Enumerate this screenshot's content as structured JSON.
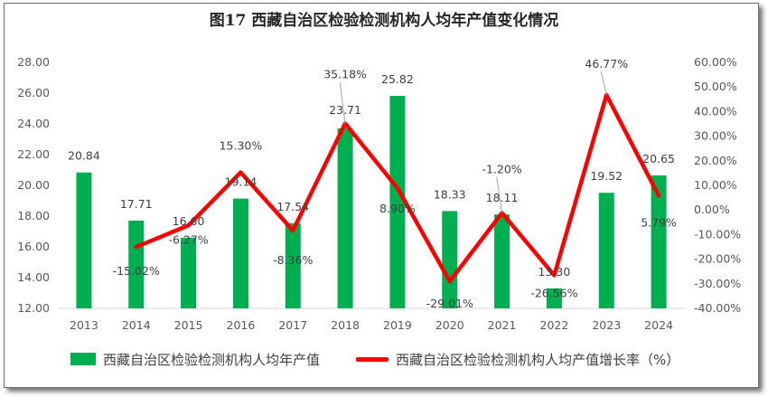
{
  "chart_data": {
    "type": "bar+line",
    "title": "图17   西藏自治区检验检测机构人均年产值变化情况",
    "categories": [
      "2013",
      "2014",
      "2015",
      "2016",
      "2017",
      "2018",
      "2019",
      "2020",
      "2021",
      "2022",
      "2023",
      "2024"
    ],
    "series": [
      {
        "name": "西藏自治区检验检测机构人均年产值",
        "type": "bar",
        "axis": "left",
        "values": [
          20.84,
          17.71,
          16.6,
          19.14,
          17.54,
          23.71,
          25.82,
          18.33,
          18.11,
          13.3,
          19.52,
          20.65
        ],
        "labels": [
          "20.84",
          "17.71",
          "16.60",
          "19.14",
          "17.54",
          "23.71",
          "25.82",
          "18.33",
          "18.11",
          "13.30",
          "19.52",
          "20.65"
        ],
        "color": "#00b050"
      },
      {
        "name": "西藏自治区检验检测机构人均产值增长率（%）",
        "type": "line",
        "axis": "right",
        "values": [
          null,
          -15.02,
          -6.27,
          15.3,
          -8.36,
          35.18,
          8.9,
          -29.01,
          -1.2,
          -26.56,
          46.77,
          5.79
        ],
        "labels": [
          "",
          "-15.02%",
          "-6.27%",
          "15.30%",
          "-8.36%",
          "35.18%",
          "8.90%",
          "-29.01%",
          "-1.20%",
          "-26.56%",
          "46.77%",
          "5.79%"
        ],
        "color": "#ff0000"
      }
    ],
    "y_left": {
      "min": 12,
      "max": 28,
      "ticks": [
        "12.00",
        "14.00",
        "16.00",
        "18.00",
        "20.00",
        "22.00",
        "24.00",
        "26.00",
        "28.00"
      ]
    },
    "y_right": {
      "min": -40,
      "max": 60,
      "ticks": [
        "-40.00%",
        "-30.00%",
        "-20.00%",
        "-10.00%",
        "0.00%",
        "10.00%",
        "20.00%",
        "30.00%",
        "40.00%",
        "50.00%",
        "60.00%"
      ]
    },
    "grid": false,
    "legend_position": "bottom"
  }
}
